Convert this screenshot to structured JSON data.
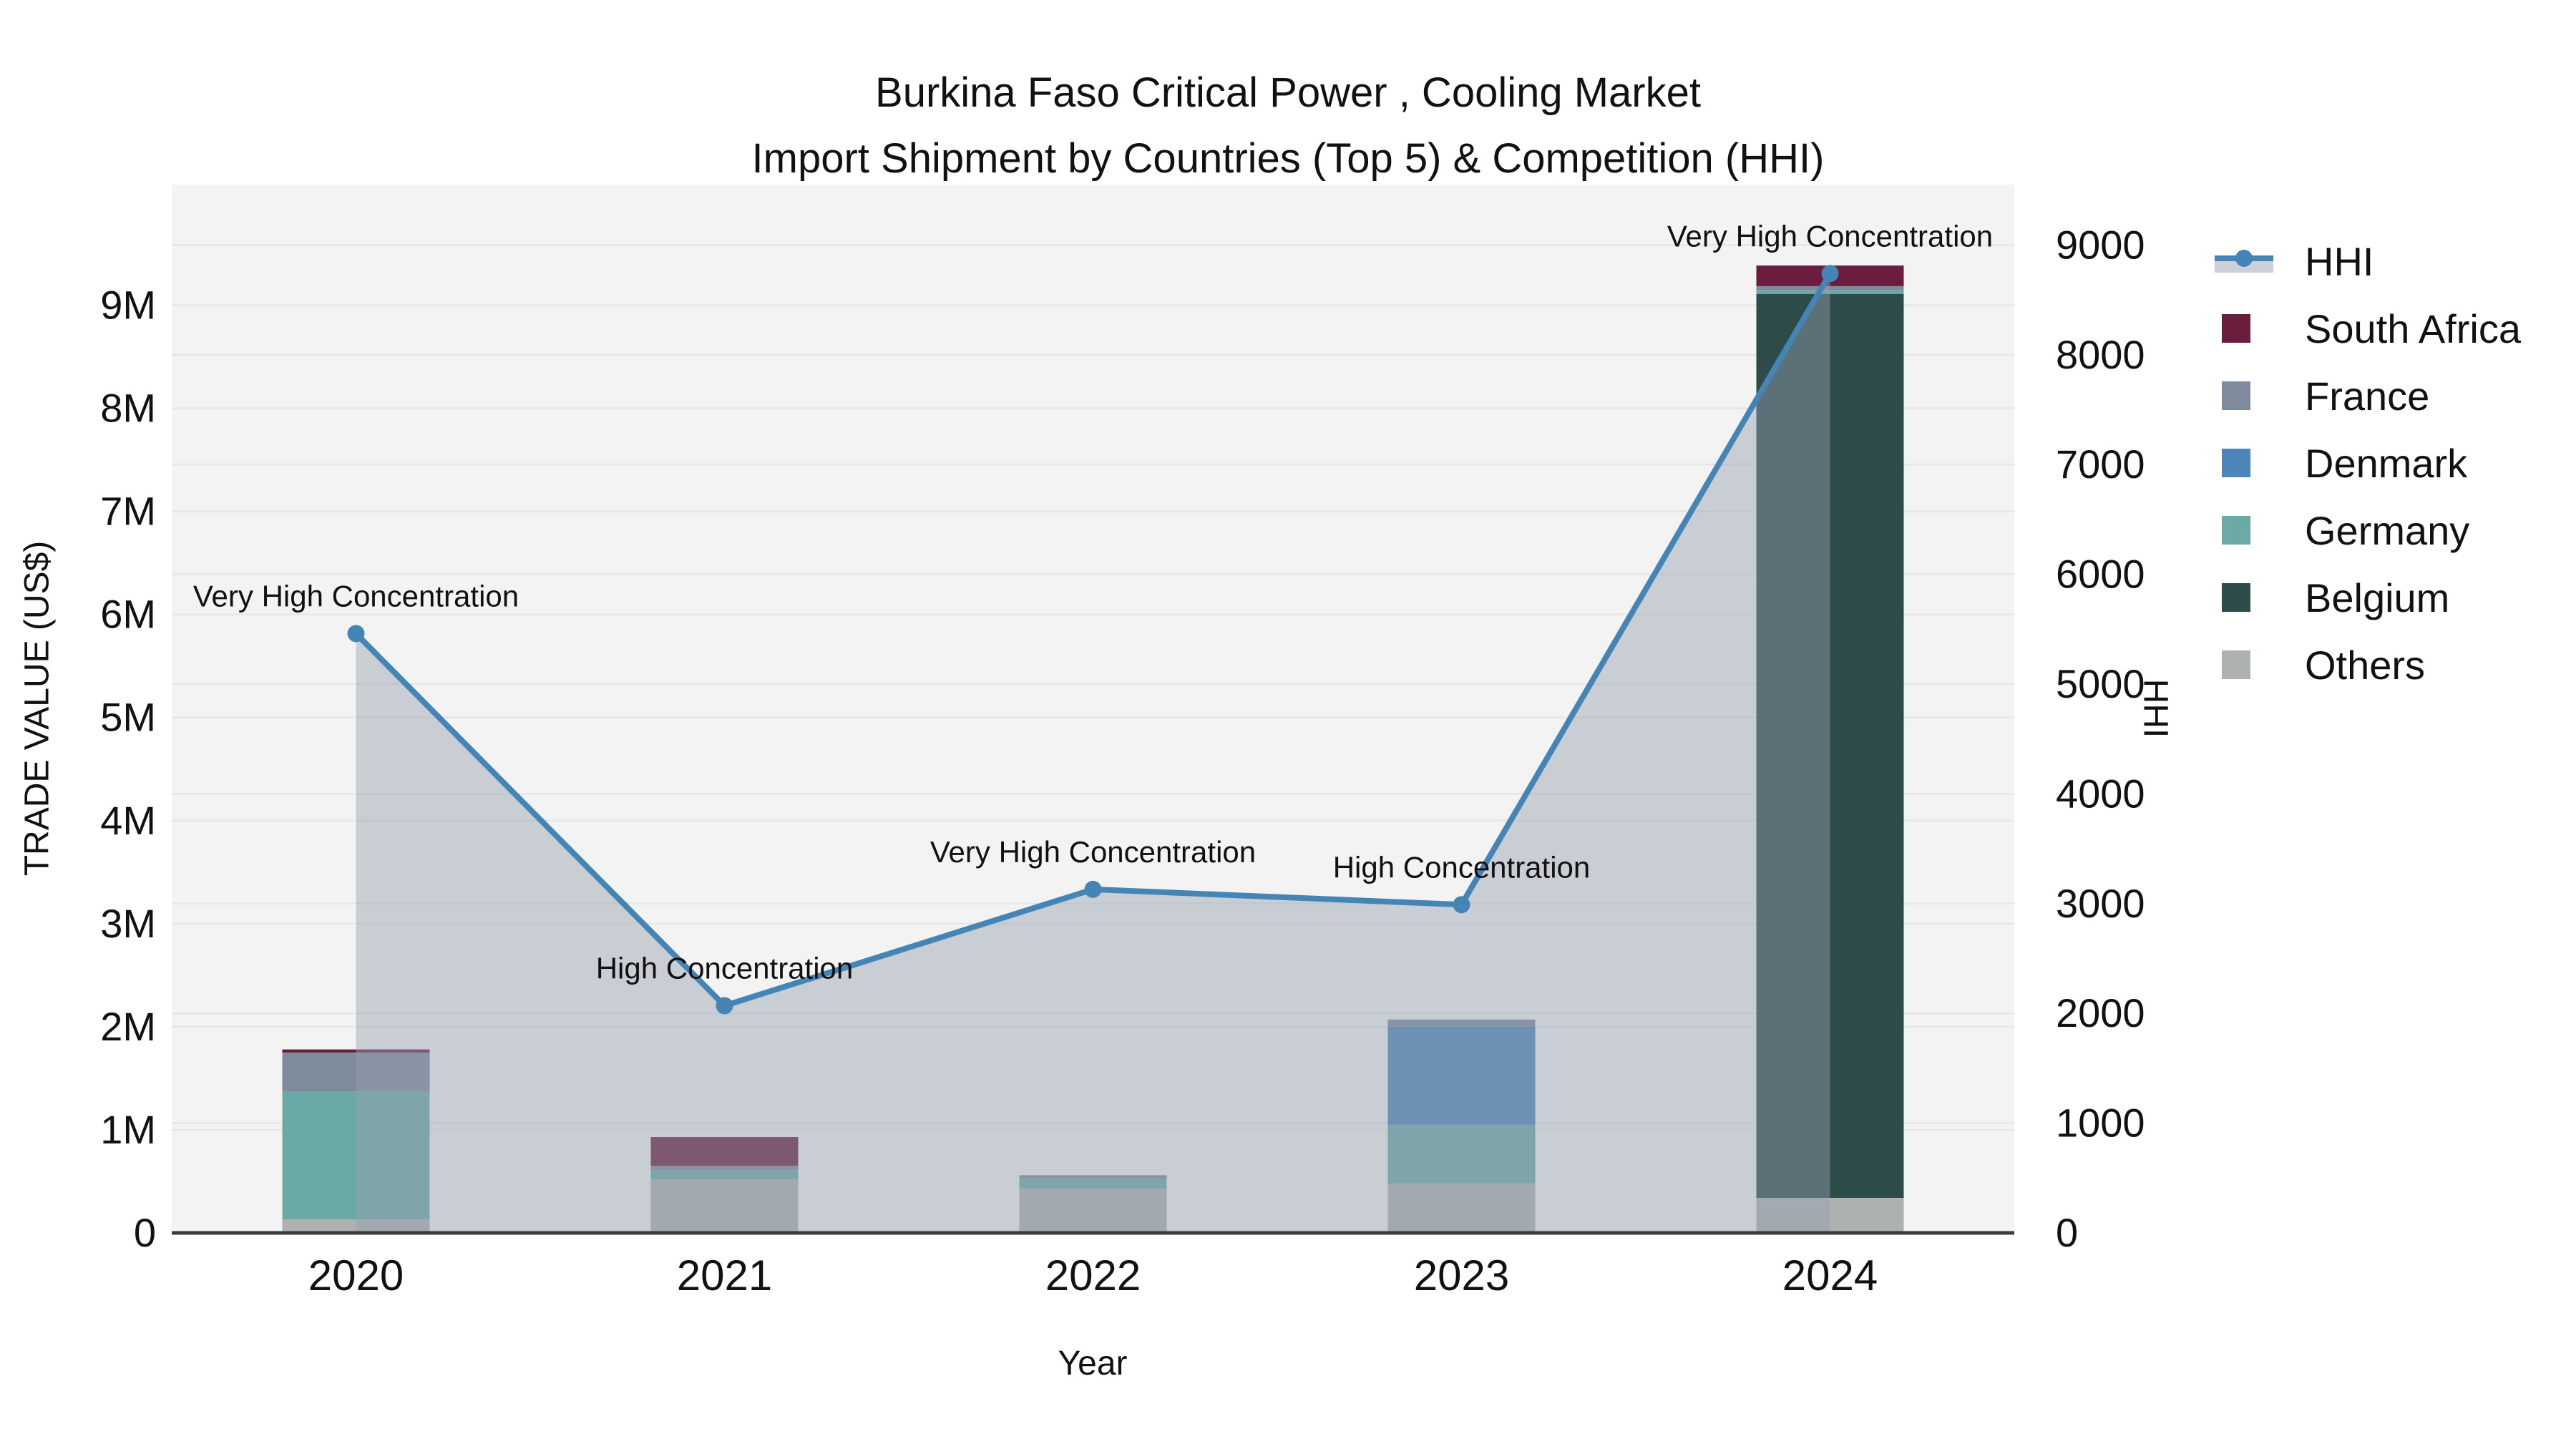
{
  "title": {
    "line1": "Burkina Faso Critical Power , Cooling Market",
    "line2": "Import Shipment by Countries (Top 5) & Competition (HHI)"
  },
  "axes": {
    "left_title": "TRADE VALUE (US$)",
    "bottom_title": "Year",
    "right_title": "HHI",
    "left_tick_labels": [
      "0",
      "1M",
      "2M",
      "3M",
      "4M",
      "5M",
      "6M",
      "7M",
      "8M",
      "9M"
    ],
    "left_tick_values": [
      0,
      1000000,
      2000000,
      3000000,
      4000000,
      5000000,
      6000000,
      7000000,
      8000000,
      9000000
    ],
    "right_tick_labels": [
      "0",
      "1000",
      "2000",
      "3000",
      "4000",
      "5000",
      "6000",
      "7000",
      "8000",
      "9000"
    ],
    "right_tick_values": [
      0,
      1000,
      2000,
      3000,
      4000,
      5000,
      6000,
      7000,
      8000,
      9000
    ]
  },
  "chart_data": {
    "type": "bar",
    "subtype": "stacked-bars-with-secondary-axis-line",
    "title": "Burkina Faso Critical Power , Cooling Market — Import Shipment by Countries (Top 5) & Competition (HHI)",
    "xlabel": "Year",
    "ylabel": "TRADE VALUE (US$)",
    "ylabel_right": "HHI",
    "categories": [
      "2020",
      "2021",
      "2022",
      "2023",
      "2024"
    ],
    "series": [
      {
        "name": "Others",
        "color": "#aeb1b1",
        "values": [
          130000,
          520000,
          430000,
          480000,
          340000
        ]
      },
      {
        "name": "Belgium",
        "color": "#2d4c49",
        "values": [
          0,
          0,
          0,
          0,
          8770000
        ]
      },
      {
        "name": "Germany",
        "color": "#6aa9a5",
        "values": [
          1240000,
          90000,
          100000,
          570000,
          35000
        ]
      },
      {
        "name": "Denmark",
        "color": "#4c86bb",
        "values": [
          0,
          0,
          0,
          950000,
          0
        ]
      },
      {
        "name": "France",
        "color": "#7d8b9c",
        "values": [
          380000,
          40000,
          30000,
          70000,
          40000
        ]
      },
      {
        "name": "South Africa",
        "color": "#6b1d3e",
        "values": [
          30000,
          280000,
          0,
          0,
          200000
        ]
      }
    ],
    "line_series": {
      "name": "HHI",
      "axis": "right",
      "color": "#4585b6",
      "area_fill": "rgba(150,160,176,0.45)",
      "values": [
        5460,
        2070,
        3130,
        2990,
        8740
      ]
    },
    "annotations": [
      "Very High Concentration",
      "High Concentration",
      "Very High Concentration",
      "High Concentration",
      "Very High Concentration"
    ],
    "ylim": [
      0,
      10170000
    ],
    "ylim_right": [
      0,
      9550
    ],
    "grid": true,
    "legend_position": "right"
  },
  "legend": {
    "order": [
      "HHI",
      "South Africa",
      "France",
      "Denmark",
      "Germany",
      "Belgium",
      "Others"
    ]
  },
  "colors": {
    "plot_background": "#f3f3f3",
    "gridline": "#e5e6e6",
    "x_axis_line": "#3b3b3b",
    "text": "#111111",
    "hhi_legend_band": "#ccd1d9"
  }
}
